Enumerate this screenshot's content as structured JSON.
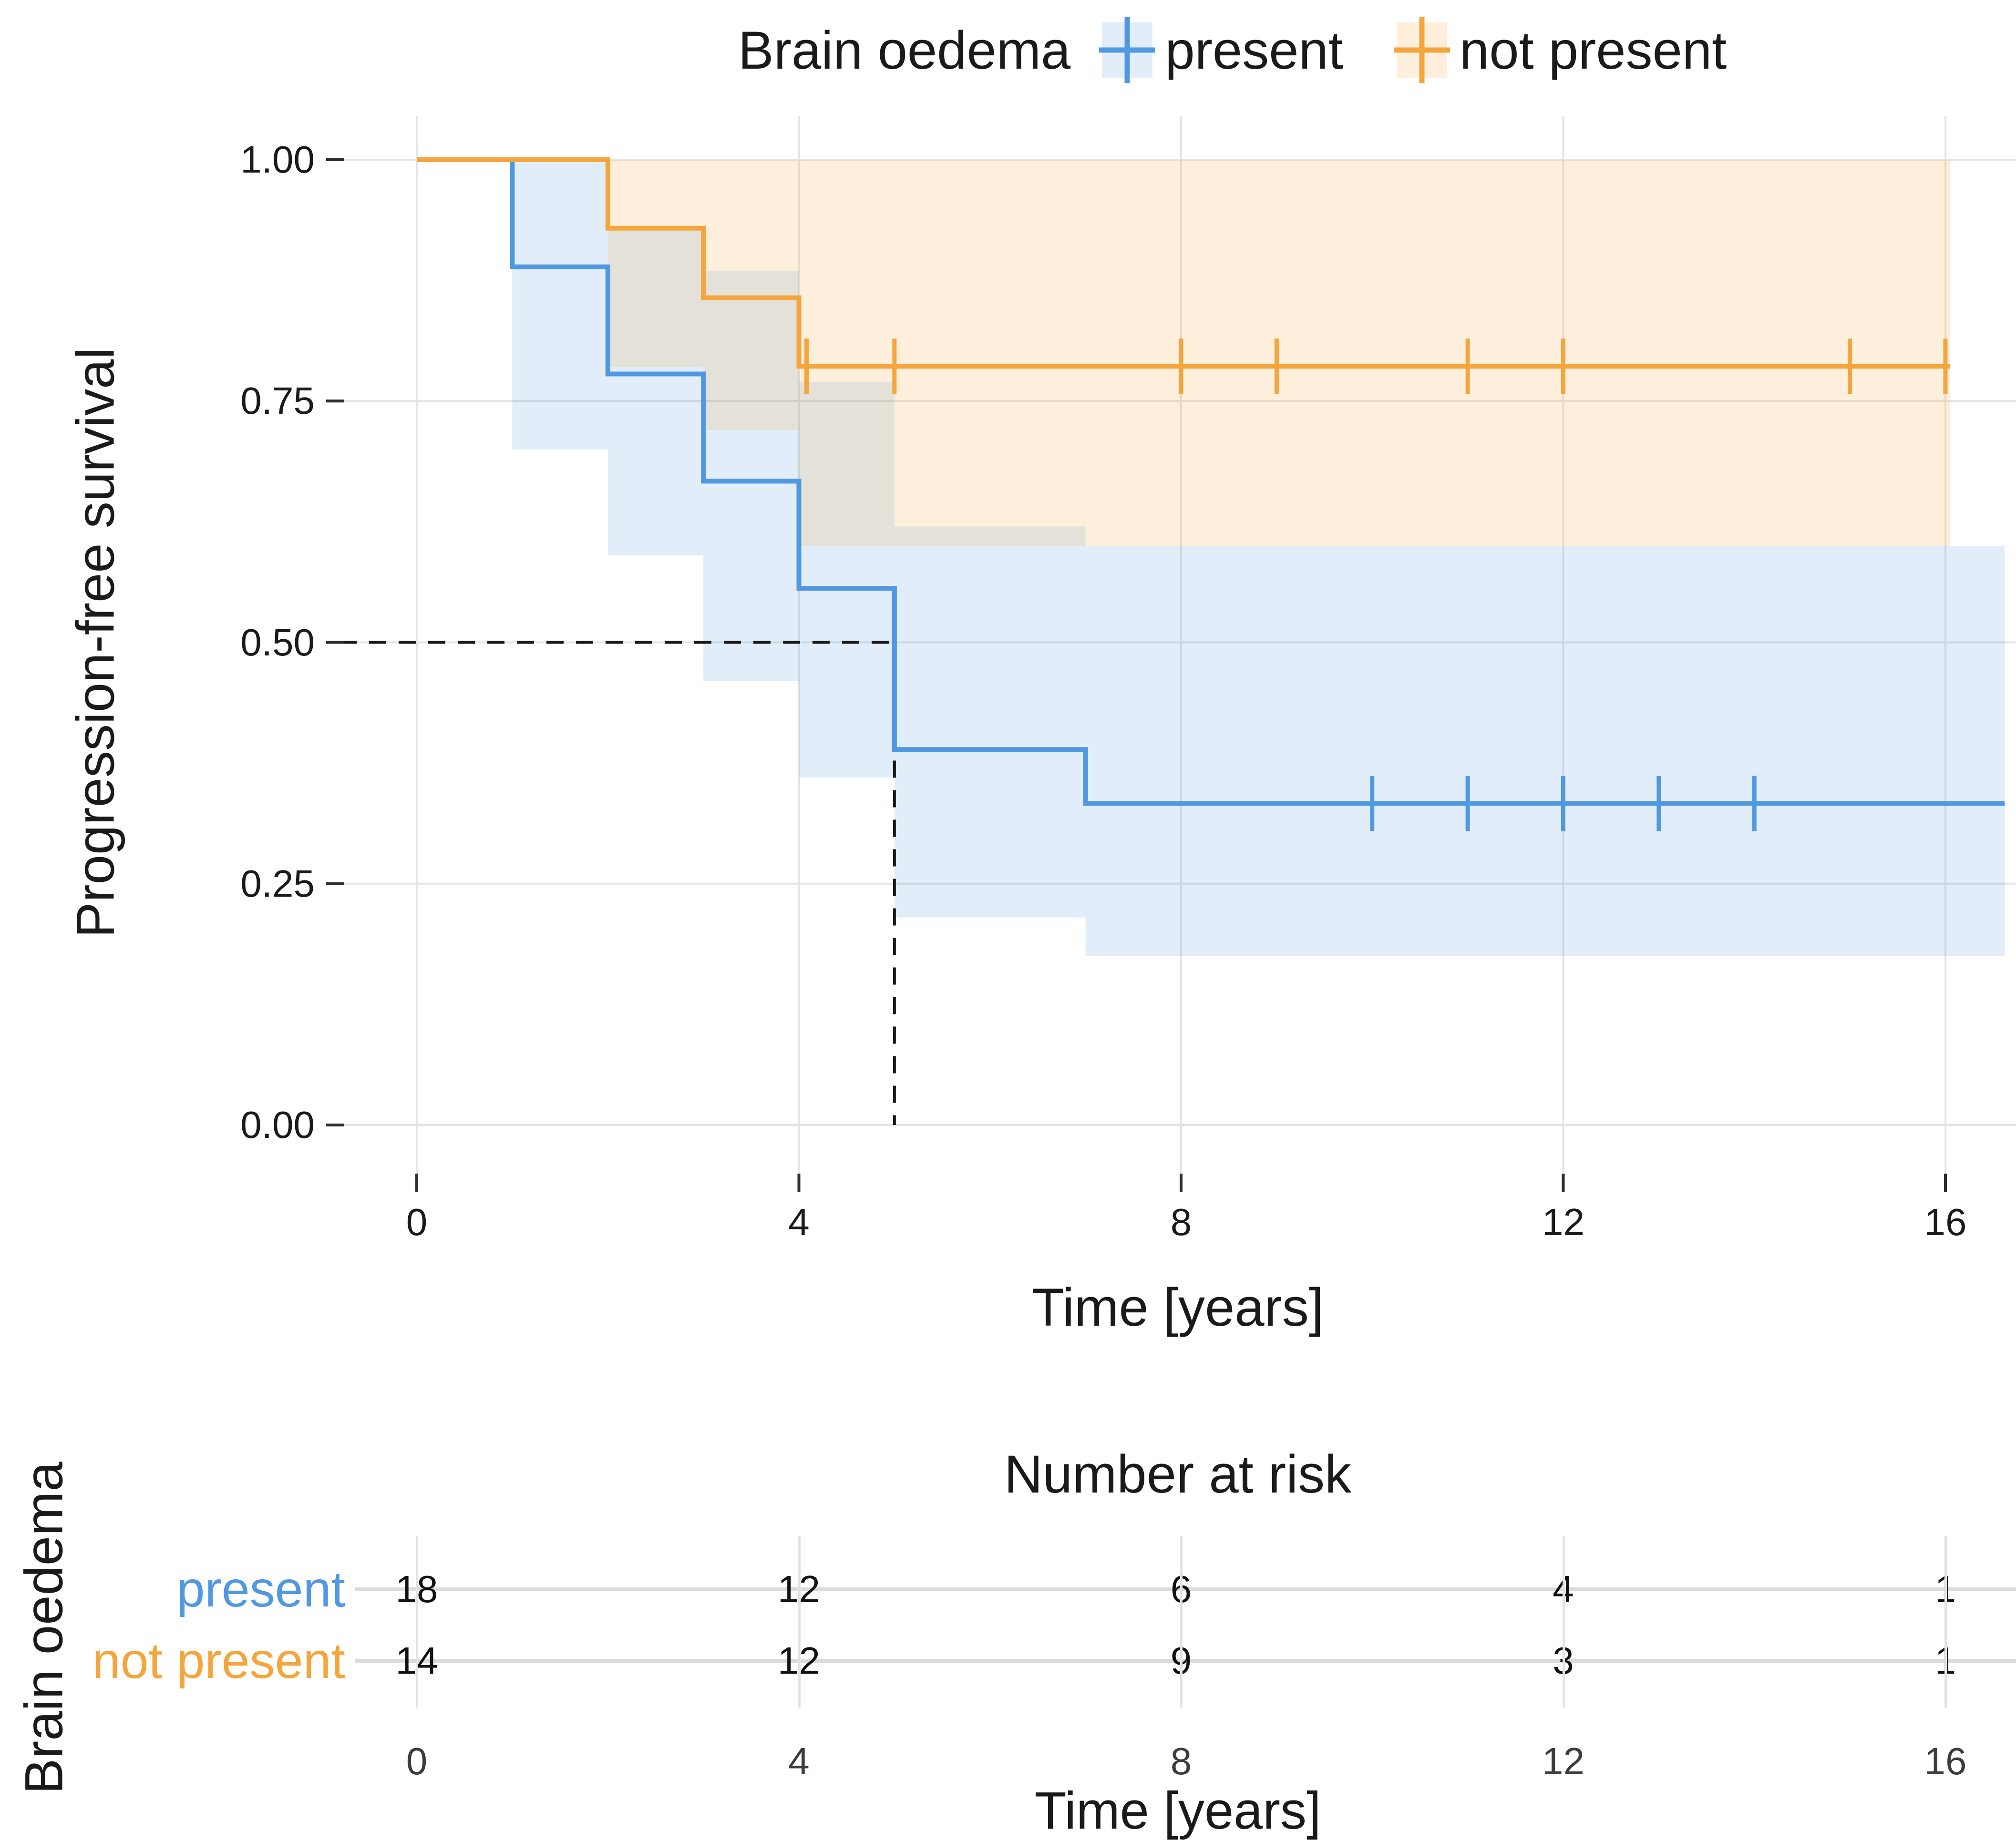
{
  "legend": {
    "title": "Brain oedema",
    "items": [
      {
        "label": "present",
        "color": "#5098E0",
        "band": "rgba(80,152,224,0.17)"
      },
      {
        "label": "not present",
        "color": "#F4A53C",
        "band": "rgba(244,165,60,0.18)"
      }
    ]
  },
  "main_plot": {
    "y_axis": {
      "title": "Progression-free survival",
      "tick_labels": [
        "1.00",
        "0.75",
        "0.50",
        "0.25",
        "0.00"
      ],
      "tick_values": [
        1.0,
        0.75,
        0.5,
        0.25,
        0.0
      ]
    },
    "x_axis": {
      "title": "Time [years]",
      "tick_labels": [
        "0",
        "4",
        "8",
        "12",
        "16"
      ],
      "tick_values": [
        0,
        4,
        8,
        12,
        16
      ]
    }
  },
  "chart_data": {
    "type": "line",
    "subtype": "kaplan-meier-step",
    "title": "",
    "xlabel": "Time [years]",
    "ylabel": "Progression-free survival",
    "xlim": [
      0,
      16.8
    ],
    "ylim": [
      0,
      1
    ],
    "grid": true,
    "legend_position": "top",
    "series": [
      {
        "name": "present",
        "color": "#5098E0",
        "band_color": "rgba(80,152,224,0.17)",
        "steps": [
          [
            0,
            1.0
          ],
          [
            1,
            0.889
          ],
          [
            2,
            0.778
          ],
          [
            3,
            0.667
          ],
          [
            4,
            0.556
          ],
          [
            5,
            0.389
          ],
          [
            7,
            0.333
          ]
        ],
        "end_time": 16.62,
        "censor_times": [
          10,
          11,
          12,
          13,
          14
        ],
        "censor_level": 0.333,
        "ci_segments": [
          [
            1,
            2,
            0.7,
            1.0
          ],
          [
            2,
            3,
            0.59,
            0.93
          ],
          [
            3,
            4,
            0.46,
            0.885
          ],
          [
            4,
            5,
            0.36,
            0.77
          ],
          [
            5,
            7,
            0.215,
            0.62
          ],
          [
            7,
            16.62,
            0.175,
            0.6
          ]
        ]
      },
      {
        "name": "not present",
        "color": "#F4A53C",
        "band_color": "rgba(244,165,60,0.18)",
        "steps": [
          [
            0,
            1.0
          ],
          [
            2,
            0.929
          ],
          [
            3,
            0.857
          ],
          [
            4,
            0.786
          ]
        ],
        "end_time": 16.05,
        "censor_times": [
          4.08,
          5,
          8,
          9,
          11,
          12,
          15,
          16
        ],
        "censor_level": 0.786,
        "ci_segments": [
          [
            2,
            3,
            0.785,
            1.0
          ],
          [
            3,
            4,
            0.72,
            1.0
          ],
          [
            4,
            16.05,
            0.6,
            1.0
          ]
        ]
      }
    ],
    "median_guide": {
      "survival": 0.5,
      "time": 5
    }
  },
  "risk_table": {
    "title": "Number at risk",
    "group_axis_title": "Brain oedema",
    "x_axis_title": "Time [years]",
    "tick_labels": [
      "0",
      "4",
      "8",
      "12",
      "16"
    ],
    "tick_values": [
      0,
      4,
      8,
      12,
      16
    ],
    "rows": [
      {
        "label": "present",
        "color": "#5098E0",
        "values": [
          "18",
          "12",
          "6",
          "4",
          "1"
        ]
      },
      {
        "label": "not present",
        "color": "#F4A53C",
        "values": [
          "14",
          "12",
          "9",
          "3",
          "1"
        ]
      }
    ]
  }
}
